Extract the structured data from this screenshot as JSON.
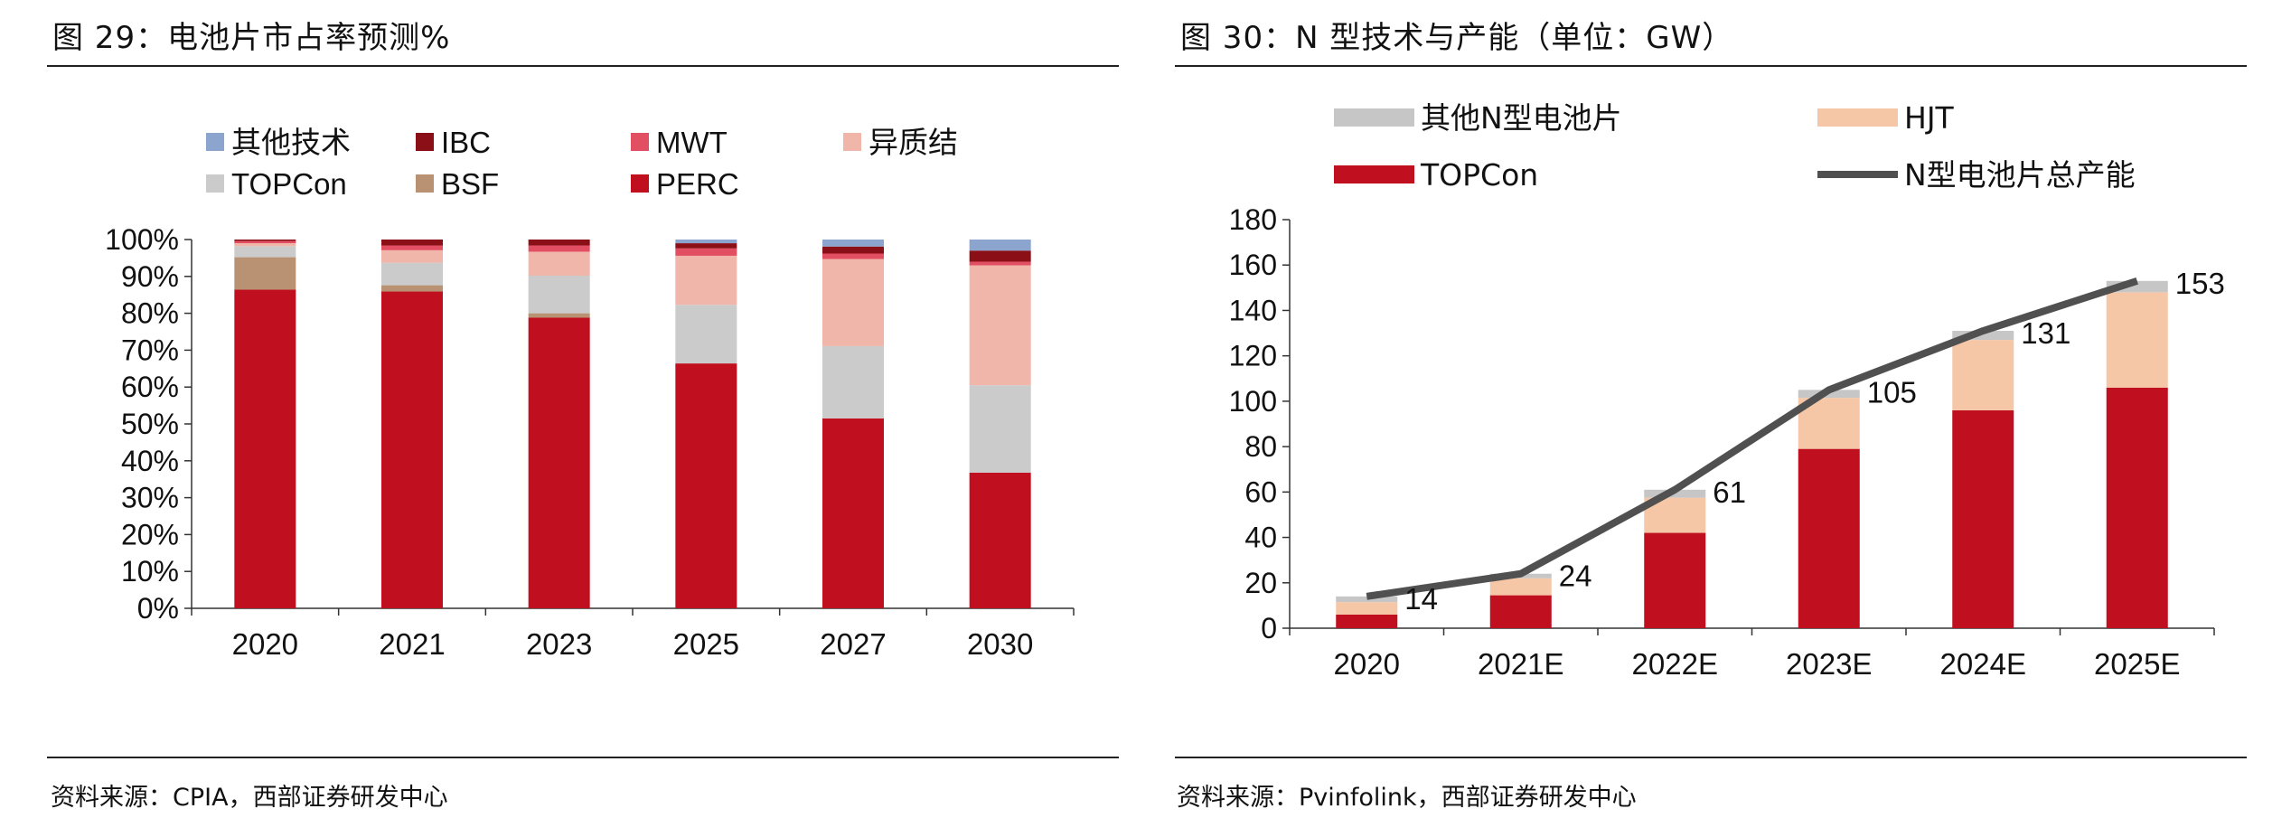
{
  "charts": [
    {
      "caption": "图 29：电池片市占率预测%",
      "source": "资料来源：CPIA，西部证券研发中心",
      "chart_data": {
        "type": "bar",
        "stacked": true,
        "categories": [
          "2020",
          "2021",
          "2023",
          "2025",
          "2027",
          "2030"
        ],
        "ylim": [
          0,
          100
        ],
        "yticks": [
          0,
          10,
          20,
          30,
          40,
          50,
          60,
          70,
          80,
          90,
          100
        ],
        "ytick_labels": [
          "0%",
          "10%",
          "20%",
          "30%",
          "40%",
          "50%",
          "60%",
          "70%",
          "80%",
          "90%",
          "100%"
        ],
        "legend": [
          "其他技术",
          "IBC",
          "MWT",
          "异质结",
          "TOPCon",
          "BSF",
          "PERC"
        ],
        "series": [
          {
            "name": "PERC",
            "color": "#c00f1e",
            "values": [
              86.4,
              85.9,
              78.8,
              66.4,
              51.5,
              36.8
            ]
          },
          {
            "name": "BSF",
            "color": "#b89272",
            "values": [
              8.8,
              1.7,
              1.2,
              0,
              0,
              0
            ]
          },
          {
            "name": "TOPCon",
            "color": "#cbcbcb",
            "values": [
              3.0,
              6.1,
              10.2,
              15.9,
              19.6,
              23.7
            ]
          },
          {
            "name": "异质结",
            "color": "#efb6a9",
            "values": [
              0.8,
              3.4,
              6.5,
              13.3,
              23.6,
              32.5
            ]
          },
          {
            "name": "MWT",
            "color": "#e24f62",
            "values": [
              0.6,
              1.3,
              1.7,
              2.0,
              1.5,
              1.0
            ]
          },
          {
            "name": "IBC",
            "color": "#8b0f17",
            "values": [
              0.4,
              1.6,
              1.6,
              1.4,
              1.9,
              3.0
            ]
          },
          {
            "name": "其他技术",
            "color": "#8ba5cf",
            "values": [
              0,
              0,
              0,
              1.0,
              1.9,
              3.0
            ]
          }
        ]
      }
    },
    {
      "caption": "图 30：N 型技术与产能（单位：GW）",
      "source": "资料来源：Pvinfolink，西部证券研发中心",
      "chart_data": {
        "type": "bar",
        "stacked": true,
        "categories": [
          "2020",
          "2021E",
          "2022E",
          "2023E",
          "2024E",
          "2025E"
        ],
        "ylim": [
          0,
          180
        ],
        "yticks": [
          0,
          20,
          40,
          60,
          80,
          100,
          120,
          140,
          160,
          180
        ],
        "ytick_labels": [
          "0",
          "20",
          "40",
          "60",
          "80",
          "100",
          "120",
          "140",
          "160",
          "180"
        ],
        "legend": [
          "其他N型电池片",
          "HJT",
          "TOPCon",
          "N型电池片总产能"
        ],
        "series": [
          {
            "name": "TOPCon",
            "color": "#c00f1e",
            "values": [
              6,
              14.5,
              42,
              79,
              96,
              106
            ]
          },
          {
            "name": "HJT",
            "color": "#f6c7a7",
            "values": [
              5.5,
              7.5,
              15.5,
              22.5,
              31,
              42
            ]
          },
          {
            "name": "其他N型电池片",
            "color": "#c6c6c6",
            "values": [
              2.5,
              2,
              3.5,
              3.5,
              4,
              5
            ]
          }
        ],
        "line": {
          "name": "N型电池片总产能",
          "color": "#505050",
          "values": [
            14,
            24,
            61,
            105,
            131,
            153
          ],
          "labels": [
            "14",
            "24",
            "61",
            "105",
            "131",
            "153"
          ]
        }
      }
    }
  ]
}
